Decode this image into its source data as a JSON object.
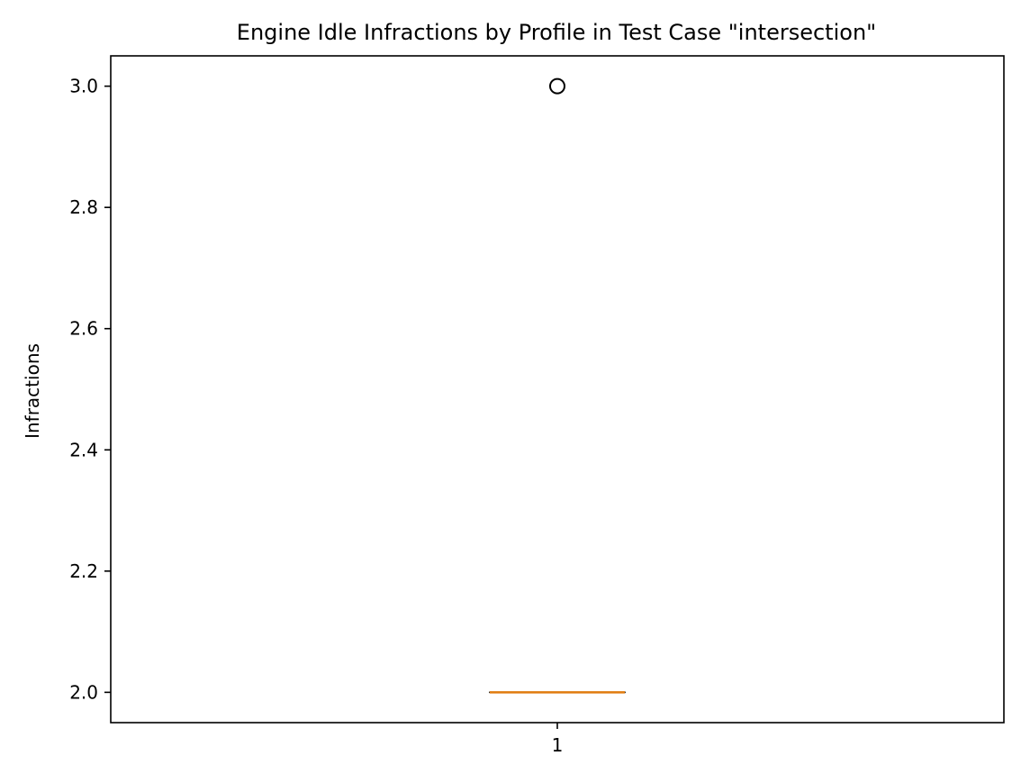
{
  "chart_data": {
    "type": "box",
    "title": "Engine Idle Infractions by Profile in Test Case \"intersection\"",
    "xlabel": "",
    "ylabel": "Infractions",
    "categories": [
      "1"
    ],
    "boxes": [
      {
        "category": "1",
        "whisker_low": 2.0,
        "q1": 2.0,
        "median": 2.0,
        "q3": 2.0,
        "whisker_high": 2.0,
        "outliers": [
          3.0
        ]
      }
    ],
    "ylim": [
      1.95,
      3.05
    ],
    "yticks": [
      2.0,
      2.2,
      2.4,
      2.6,
      2.8,
      3.0
    ],
    "ytick_labels": [
      "2.0",
      "2.2",
      "2.4",
      "2.6",
      "2.8",
      "3.0"
    ],
    "grid": false,
    "colors": {
      "median": "#e07b0e",
      "box": "#000000",
      "outlier": "#000000"
    }
  }
}
